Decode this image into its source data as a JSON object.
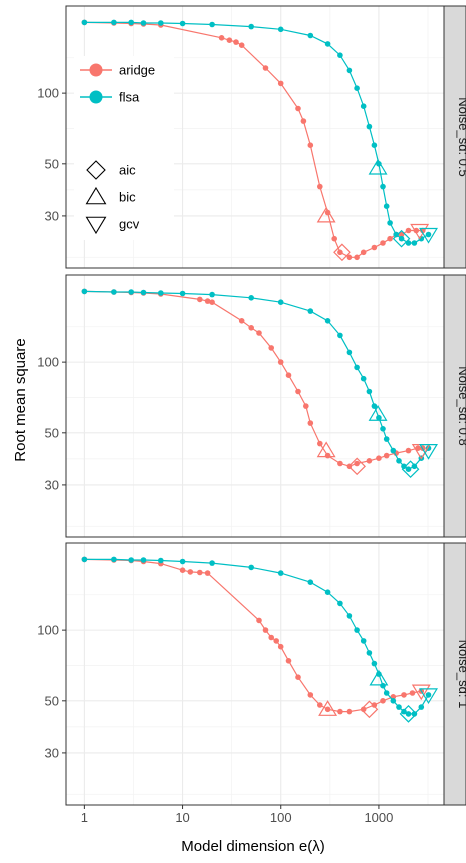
{
  "chart_data": {
    "type": "line",
    "xlabel": "Model dimension e(λ)",
    "ylabel": "Root mean square",
    "x_scale": "log10",
    "y_scale": "log10",
    "x_ticks": [
      1,
      10,
      100,
      1000
    ],
    "x_tick_labels": [
      "1",
      "10",
      "100",
      "1000"
    ],
    "y_ticks": [
      30,
      50,
      100
    ],
    "y_tick_labels": [
      "30",
      "50",
      "100"
    ],
    "xlim": [
      0.65,
      4600
    ],
    "ylim": [
      18,
      235
    ],
    "grid": true,
    "legend_position": "top-left",
    "colors": {
      "aridge": "#F8766D",
      "flsa": "#00BFC4"
    },
    "legend": {
      "series": [
        "aridge",
        "flsa"
      ],
      "markers": [
        {
          "label": "aic",
          "shape": "diamond"
        },
        {
          "label": "bic",
          "shape": "triangle-up"
        },
        {
          "label": "gcv",
          "shape": "triangle-down"
        }
      ]
    },
    "panels": [
      {
        "strip": "Noise_sd: 0.5",
        "series": [
          {
            "name": "aridge",
            "points": [
              [
                1,
                200
              ],
              [
                2,
                199
              ],
              [
                3,
                198
              ],
              [
                4,
                197
              ],
              [
                6,
                195
              ],
              [
                25,
                172
              ],
              [
                30,
                168
              ],
              [
                35,
                165
              ],
              [
                40,
                160
              ],
              [
                70,
                128
              ],
              [
                100,
                110
              ],
              [
                150,
                86
              ],
              [
                170,
                76
              ],
              [
                200,
                60
              ],
              [
                250,
                40
              ],
              [
                300,
                31
              ],
              [
                350,
                24
              ],
              [
                400,
                21
              ],
              [
                500,
                20
              ],
              [
                600,
                20
              ],
              [
                700,
                21
              ],
              [
                900,
                22
              ],
              [
                1100,
                23
              ],
              [
                1300,
                24
              ],
              [
                1500,
                25
              ],
              [
                1700,
                25
              ],
              [
                2000,
                26
              ],
              [
                2400,
                26
              ],
              [
                2800,
                26
              ]
            ]
          },
          {
            "name": "flsa",
            "points": [
              [
                1,
                200
              ],
              [
                2,
                200
              ],
              [
                3,
                200
              ],
              [
                4,
                199
              ],
              [
                6,
                199
              ],
              [
                10,
                198
              ],
              [
                20,
                196
              ],
              [
                50,
                192
              ],
              [
                100,
                187
              ],
              [
                200,
                176
              ],
              [
                300,
                162
              ],
              [
                400,
                145
              ],
              [
                500,
                125
              ],
              [
                600,
                105
              ],
              [
                700,
                88
              ],
              [
                800,
                72
              ],
              [
                900,
                60
              ],
              [
                1000,
                50
              ],
              [
                1100,
                40
              ],
              [
                1200,
                33
              ],
              [
                1300,
                28
              ],
              [
                1500,
                25
              ],
              [
                1700,
                24
              ],
              [
                2000,
                23
              ],
              [
                2300,
                23
              ],
              [
                2700,
                24
              ],
              [
                3200,
                25
              ]
            ]
          }
        ],
        "markers": [
          {
            "series": "aridge",
            "criterion": "aic",
            "x": 420,
            "y": 21
          },
          {
            "series": "aridge",
            "criterion": "bic",
            "x": 290,
            "y": 30
          },
          {
            "series": "aridge",
            "criterion": "gcv",
            "x": 2600,
            "y": 26
          },
          {
            "series": "flsa",
            "criterion": "aic",
            "x": 1700,
            "y": 24
          },
          {
            "series": "flsa",
            "criterion": "bic",
            "x": 980,
            "y": 48
          },
          {
            "series": "flsa",
            "criterion": "gcv",
            "x": 3200,
            "y": 25
          }
        ]
      },
      {
        "strip": "Noise_sd: 0.8",
        "series": [
          {
            "name": "aridge",
            "points": [
              [
                1,
                200
              ],
              [
                2,
                199
              ],
              [
                3,
                198
              ],
              [
                4,
                197
              ],
              [
                6,
                195
              ],
              [
                15,
                185
              ],
              [
                18,
                182
              ],
              [
                20,
                180
              ],
              [
                40,
                150
              ],
              [
                50,
                140
              ],
              [
                60,
                133
              ],
              [
                80,
                115
              ],
              [
                100,
                100
              ],
              [
                120,
                88
              ],
              [
                150,
                75
              ],
              [
                180,
                65
              ],
              [
                200,
                55
              ],
              [
                250,
                45
              ],
              [
                300,
                40
              ],
              [
                400,
                37
              ],
              [
                500,
                36
              ],
              [
                600,
                37
              ],
              [
                800,
                38
              ],
              [
                1000,
                39
              ],
              [
                1200,
                40
              ],
              [
                1500,
                41
              ],
              [
                2000,
                42
              ],
              [
                2500,
                43
              ],
              [
                2800,
                43
              ]
            ]
          },
          {
            "name": "flsa",
            "points": [
              [
                1,
                200
              ],
              [
                2,
                199
              ],
              [
                3,
                199
              ],
              [
                4,
                198
              ],
              [
                6,
                197
              ],
              [
                10,
                196
              ],
              [
                20,
                194
              ],
              [
                50,
                188
              ],
              [
                100,
                180
              ],
              [
                200,
                165
              ],
              [
                300,
                150
              ],
              [
                400,
                130
              ],
              [
                500,
                110
              ],
              [
                600,
                95
              ],
              [
                700,
                85
              ],
              [
                800,
                75
              ],
              [
                900,
                65
              ],
              [
                1000,
                58
              ],
              [
                1100,
                52
              ],
              [
                1200,
                47
              ],
              [
                1400,
                42
              ],
              [
                1600,
                38
              ],
              [
                1800,
                36
              ],
              [
                2000,
                35
              ],
              [
                2300,
                36
              ],
              [
                2700,
                39
              ],
              [
                3200,
                43
              ]
            ]
          }
        ],
        "markers": [
          {
            "series": "aridge",
            "criterion": "aic",
            "x": 600,
            "y": 36
          },
          {
            "series": "aridge",
            "criterion": "bic",
            "x": 290,
            "y": 42
          },
          {
            "series": "aridge",
            "criterion": "gcv",
            "x": 2700,
            "y": 42
          },
          {
            "series": "flsa",
            "criterion": "aic",
            "x": 2100,
            "y": 35
          },
          {
            "series": "flsa",
            "criterion": "bic",
            "x": 980,
            "y": 60
          },
          {
            "series": "flsa",
            "criterion": "gcv",
            "x": 3200,
            "y": 42
          }
        ]
      },
      {
        "strip": "Noise_sd: 1",
        "series": [
          {
            "name": "aridge",
            "points": [
              [
                1,
                200
              ],
              [
                2,
                199
              ],
              [
                3,
                198
              ],
              [
                4,
                196
              ],
              [
                6,
                192
              ],
              [
                10,
                180
              ],
              [
                12,
                177
              ],
              [
                15,
                176
              ],
              [
                18,
                175
              ],
              [
                60,
                110
              ],
              [
                70,
                100
              ],
              [
                80,
                93
              ],
              [
                90,
                90
              ],
              [
                100,
                85
              ],
              [
                120,
                74
              ],
              [
                150,
                63
              ],
              [
                200,
                53
              ],
              [
                250,
                48
              ],
              [
                300,
                46
              ],
              [
                400,
                45
              ],
              [
                500,
                45
              ],
              [
                700,
                46
              ],
              [
                900,
                48
              ],
              [
                1100,
                50
              ],
              [
                1400,
                52
              ],
              [
                1800,
                53
              ],
              [
                2200,
                54
              ],
              [
                2700,
                55
              ]
            ]
          },
          {
            "name": "flsa",
            "points": [
              [
                1,
                200
              ],
              [
                2,
                200
              ],
              [
                3,
                199
              ],
              [
                4,
                199
              ],
              [
                6,
                198
              ],
              [
                10,
                196
              ],
              [
                20,
                193
              ],
              [
                50,
                185
              ],
              [
                100,
                175
              ],
              [
                200,
                160
              ],
              [
                300,
                145
              ],
              [
                400,
                130
              ],
              [
                500,
                115
              ],
              [
                600,
                100
              ],
              [
                700,
                90
              ],
              [
                800,
                80
              ],
              [
                900,
                72
              ],
              [
                1000,
                65
              ],
              [
                1100,
                58
              ],
              [
                1200,
                54
              ],
              [
                1400,
                50
              ],
              [
                1600,
                47
              ],
              [
                1800,
                45
              ],
              [
                2000,
                44
              ],
              [
                2300,
                44
              ],
              [
                2700,
                47
              ],
              [
                3200,
                53
              ]
            ]
          }
        ],
        "markers": [
          {
            "series": "aridge",
            "criterion": "aic",
            "x": 800,
            "y": 46
          },
          {
            "series": "aridge",
            "criterion": "bic",
            "x": 300,
            "y": 46
          },
          {
            "series": "aridge",
            "criterion": "gcv",
            "x": 2700,
            "y": 55
          },
          {
            "series": "flsa",
            "criterion": "aic",
            "x": 2000,
            "y": 44
          },
          {
            "series": "flsa",
            "criterion": "bic",
            "x": 1000,
            "y": 62
          },
          {
            "series": "flsa",
            "criterion": "gcv",
            "x": 3200,
            "y": 53
          }
        ]
      }
    ]
  }
}
